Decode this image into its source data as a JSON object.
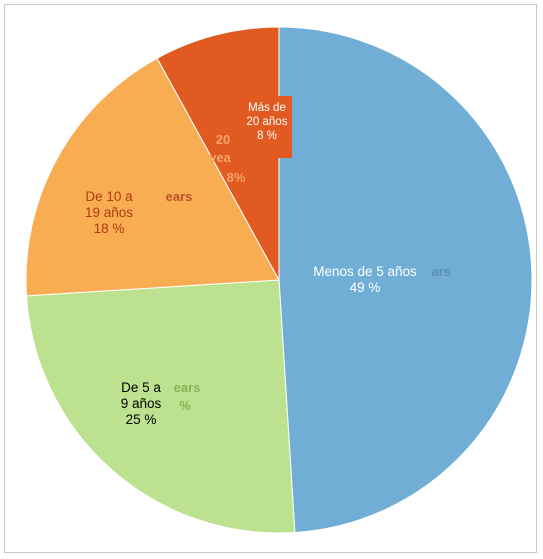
{
  "chart_data": {
    "type": "pie",
    "start_angle_deg": 0,
    "direction": "clockwise",
    "slices": [
      {
        "name": "Menos de 5 años",
        "value": 49,
        "pct_label": "49 %",
        "color": "#70aed6",
        "text_color": "#ffffff",
        "label_lines": [
          "Menos de 5 años",
          "49 %"
        ],
        "ghost_lines": [
          "ars"
        ]
      },
      {
        "name": "De 5 a 9 años",
        "value": 25,
        "pct_label": "25 %",
        "color": "#bde28f",
        "text_color": "#000000",
        "label_lines": [
          "De 5 a",
          "9 años",
          "25 %"
        ],
        "ghost_lines": [
          "ears",
          "%"
        ]
      },
      {
        "name": "De 10 a 19 años",
        "value": 18,
        "pct_label": "18 %",
        "color": "#f8ad53",
        "text_color": "#b23a12",
        "label_lines": [
          "De 10 a",
          "19 años",
          "18 %"
        ],
        "ghost_lines": [
          "ears"
        ]
      },
      {
        "name": "Más de 20 años",
        "value": 8,
        "pct_label": "8 %",
        "color": "#e05a21",
        "text_color": "#ffffff",
        "label_lines": [
          "Más de",
          "20 años",
          "8 %"
        ],
        "ghost_lines": [
          "20",
          "yea",
          "8%"
        ]
      }
    ]
  }
}
